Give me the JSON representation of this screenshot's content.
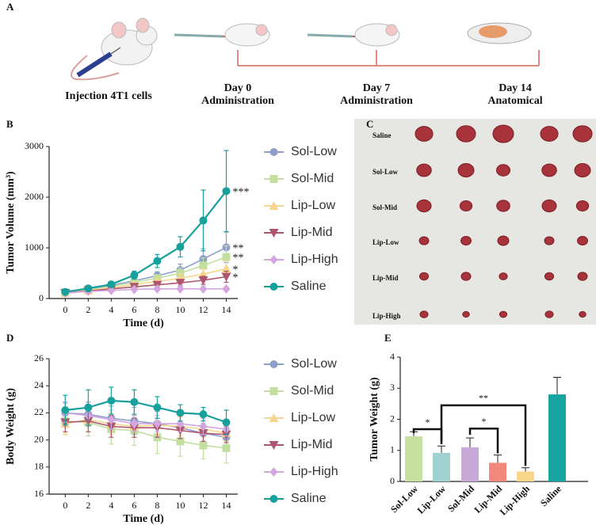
{
  "panel_labels": [
    "A",
    "B",
    "C",
    "D",
    "E"
  ],
  "schematic": {
    "steps": [
      {
        "lines": [
          "Injection 4T1 cells"
        ]
      },
      {
        "lines": [
          "Day 0",
          "Administration"
        ]
      },
      {
        "lines": [
          "Day 7",
          "Administration"
        ]
      },
      {
        "lines": [
          "Day 14",
          "Anatomical"
        ]
      }
    ]
  },
  "photo": {
    "row_labels": [
      "Saline",
      "Sol-Low",
      "Sol-Mid",
      "Lip-Low",
      "Lip-Mid",
      "Lip-High"
    ]
  },
  "chart_data": [
    {
      "type": "line",
      "xlabel": "Time (d)",
      "ylabel": "Tumor Volume (mm³)",
      "x": [
        0,
        2,
        4,
        6,
        8,
        10,
        12,
        14
      ],
      "xlim": [
        -1.4,
        15
      ],
      "xticks": [
        0,
        2,
        4,
        6,
        8,
        10,
        12,
        14
      ],
      "ylim": [
        0,
        3000
      ],
      "yticks": [
        0,
        1000,
        2000,
        3000
      ],
      "series": [
        {
          "name": "Sol-Low",
          "color": "#8d9fcb",
          "marker": "circle",
          "values": [
            120,
            180,
            260,
            350,
            450,
            560,
            780,
            1010
          ],
          "errors": [
            15,
            20,
            30,
            50,
            80,
            120,
            200,
            300
          ],
          "annotation": "**"
        },
        {
          "name": "Sol-Mid",
          "color": "#c3dfa0",
          "marker": "square",
          "values": [
            120,
            170,
            240,
            320,
            400,
            500,
            650,
            820
          ],
          "errors": [
            15,
            20,
            30,
            45,
            70,
            100,
            150,
            220
          ],
          "annotation": "**"
        },
        {
          "name": "Lip-Low",
          "color": "#f6d68c",
          "marker": "tri-up",
          "values": [
            110,
            160,
            210,
            280,
            340,
            400,
            480,
            590
          ],
          "errors": [
            12,
            18,
            25,
            40,
            55,
            80,
            100,
            150
          ],
          "annotation": "*"
        },
        {
          "name": "Lip-Mid",
          "color": "#ae566f",
          "marker": "tri-down",
          "values": [
            110,
            150,
            190,
            230,
            270,
            310,
            360,
            430
          ],
          "errors": [
            12,
            15,
            20,
            30,
            40,
            60,
            80,
            110
          ],
          "annotation": "*"
        },
        {
          "name": "Lip-High",
          "color": "#d3a6df",
          "marker": "diamond",
          "values": [
            110,
            140,
            160,
            180,
            190,
            190,
            190,
            190
          ],
          "errors": [
            10,
            12,
            15,
            20,
            25,
            30,
            35,
            40
          ]
        },
        {
          "name": "Saline",
          "color": "#17a09c",
          "marker": "circle",
          "values": [
            130,
            200,
            280,
            460,
            740,
            1020,
            1540,
            2120
          ],
          "errors": [
            20,
            30,
            40,
            80,
            130,
            200,
            600,
            800
          ],
          "annotation": "***"
        }
      ]
    },
    {
      "type": "line",
      "xlabel": "Time (d)",
      "ylabel": "Body Weight (g)",
      "x": [
        0,
        2,
        4,
        6,
        8,
        10,
        12,
        14
      ],
      "xlim": [
        -1.4,
        15
      ],
      "xticks": [
        0,
        2,
        4,
        6,
        8,
        10,
        12,
        14
      ],
      "ylim": [
        16,
        26
      ],
      "yticks": [
        16,
        18,
        20,
        22,
        24,
        26
      ],
      "series": [
        {
          "name": "Sol-Low",
          "color": "#8d9fcb",
          "marker": "circle",
          "values": [
            22.0,
            21.9,
            21.6,
            21.4,
            21.2,
            20.9,
            20.5,
            20.2
          ],
          "errors": [
            0.8,
            0.9,
            0.9,
            1.0,
            0.9,
            0.8,
            0.7,
            0.7
          ]
        },
        {
          "name": "Sol-Mid",
          "color": "#c3dfa0",
          "marker": "square",
          "values": [
            21.4,
            21.3,
            20.8,
            20.7,
            20.2,
            19.9,
            19.6,
            19.4
          ],
          "errors": [
            1.0,
            1.0,
            1.1,
            1.1,
            1.2,
            1.1,
            1.0,
            1.1
          ]
        },
        {
          "name": "Lip-Low",
          "color": "#f6d68c",
          "marker": "tri-up",
          "values": [
            21.2,
            21.5,
            21.2,
            21.0,
            21.1,
            21.0,
            20.8,
            20.5
          ],
          "errors": [
            0.8,
            0.9,
            0.8,
            0.8,
            0.7,
            0.7,
            0.6,
            0.6
          ]
        },
        {
          "name": "Lip-Mid",
          "color": "#ae566f",
          "marker": "tri-down",
          "values": [
            21.3,
            21.4,
            21.0,
            20.9,
            20.9,
            20.7,
            20.5,
            20.4
          ],
          "errors": [
            0.7,
            0.8,
            0.8,
            0.7,
            0.7,
            0.6,
            0.6,
            0.6
          ]
        },
        {
          "name": "Lip-High",
          "color": "#d3a6df",
          "marker": "diamond",
          "values": [
            22.0,
            21.8,
            21.5,
            21.2,
            21.2,
            21.2,
            21.0,
            20.8
          ],
          "errors": [
            0.7,
            0.7,
            0.7,
            0.6,
            0.6,
            0.6,
            0.6,
            0.5
          ]
        },
        {
          "name": "Saline",
          "color": "#17a09c",
          "marker": "circle",
          "values": [
            22.2,
            22.4,
            22.9,
            22.8,
            22.4,
            22.0,
            21.9,
            21.3
          ],
          "errors": [
            1.1,
            1.3,
            1.0,
            0.9,
            0.8,
            0.6,
            0.5,
            0.9
          ]
        }
      ]
    },
    {
      "type": "bar",
      "ylabel": "Tumor Weight (g)",
      "categories": [
        "Sol-Low",
        "Lip-Low",
        "Sol-Mid",
        "Lip-Mid",
        "Lip-High",
        "Saline"
      ],
      "values": [
        1.45,
        0.92,
        1.1,
        0.6,
        0.32,
        2.8
      ],
      "errors": [
        0.15,
        0.22,
        0.3,
        0.25,
        0.12,
        0.55
      ],
      "colors": [
        "#c8e0a0",
        "#9fd1d1",
        "#c9a9d8",
        "#f3887c",
        "#f8d78c",
        "#17a39e"
      ],
      "ylim": [
        0,
        4
      ],
      "yticks": [
        0,
        1,
        2,
        3,
        4
      ],
      "annotations": [
        "*",
        "*",
        "**"
      ]
    }
  ]
}
